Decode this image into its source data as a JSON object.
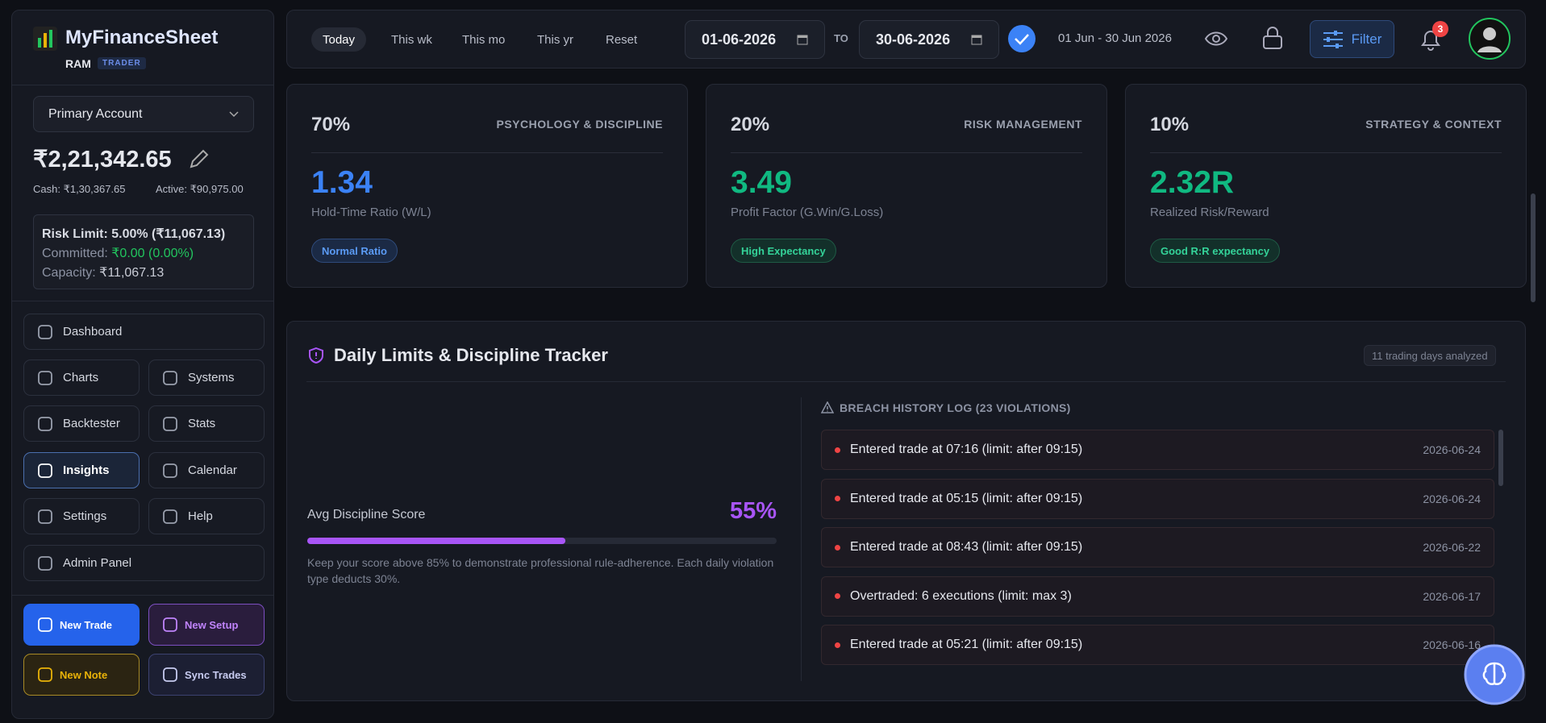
{
  "brand": {
    "name": "MyFinanceSheet",
    "user": "RAM",
    "role": "TRADER"
  },
  "account": {
    "selected": "Primary Account",
    "balance": "₹2,21,342.65",
    "cash": "Cash: ₹1,30,367.65",
    "active": "Active: ₹90,975.00",
    "risk_limit": "Risk Limit: 5.00% (₹11,067.13)",
    "committed_label": "Committed:",
    "committed": "₹0.00 (0.00%)",
    "capacity_label": "Capacity:",
    "capacity": "₹11,067.13"
  },
  "nav": [
    "Dashboard",
    "Charts",
    "Systems",
    "Backtester",
    "Stats",
    "Insights",
    "Calendar",
    "Settings",
    "Help",
    "Admin Panel"
  ],
  "actions": [
    "New Trade",
    "New Setup",
    "New Note",
    "Sync Trades"
  ],
  "topbar": {
    "ranges": [
      "Today",
      "This wk",
      "This mo",
      "This yr",
      "Reset"
    ],
    "date_from": "01-06-2026",
    "to": "TO",
    "date_to": "30-06-2026",
    "range_text": "01 Jun - 30 Jun 2026",
    "filter": "Filter",
    "notifications": "3"
  },
  "cards": [
    {
      "weight": "70%",
      "category": "PSYCHOLOGY & DISCIPLINE",
      "value": "1.34",
      "metric": "Hold-Time Ratio (W/L)",
      "badge": "Normal Ratio"
    },
    {
      "weight": "20%",
      "category": "RISK MANAGEMENT",
      "value": "3.49",
      "metric": "Profit Factor (G.Win/G.Loss)",
      "badge": "High Expectancy"
    },
    {
      "weight": "10%",
      "category": "STRATEGY & CONTEXT",
      "value": "2.32R",
      "metric": "Realized Risk/Reward",
      "badge": "Good R:R expectancy"
    }
  ],
  "tracker": {
    "title": "Daily Limits & Discipline Tracker",
    "days": "11 trading days analyzed",
    "score_label": "Avg Discipline Score",
    "score": {
      "value": 55,
      "label": "55%"
    },
    "note": "Keep your score above 85% to demonstrate professional rule-adherence. Each daily violation type deducts 30%.",
    "log_title": "BREACH HISTORY LOG (23 VIOLATIONS)",
    "breaches": [
      {
        "text": "Entered trade at 07:16 (limit: after 09:15)",
        "date": "2026-06-24"
      },
      {
        "text": "Entered trade at 05:15 (limit: after 09:15)",
        "date": "2026-06-24"
      },
      {
        "text": "Entered trade at 08:43 (limit: after 09:15)",
        "date": "2026-06-22"
      },
      {
        "text": "Overtraded: 6 executions (limit: max 3)",
        "date": "2026-06-17"
      },
      {
        "text": "Entered trade at 05:21 (limit: after 09:15)",
        "date": "2026-06-16"
      }
    ]
  }
}
